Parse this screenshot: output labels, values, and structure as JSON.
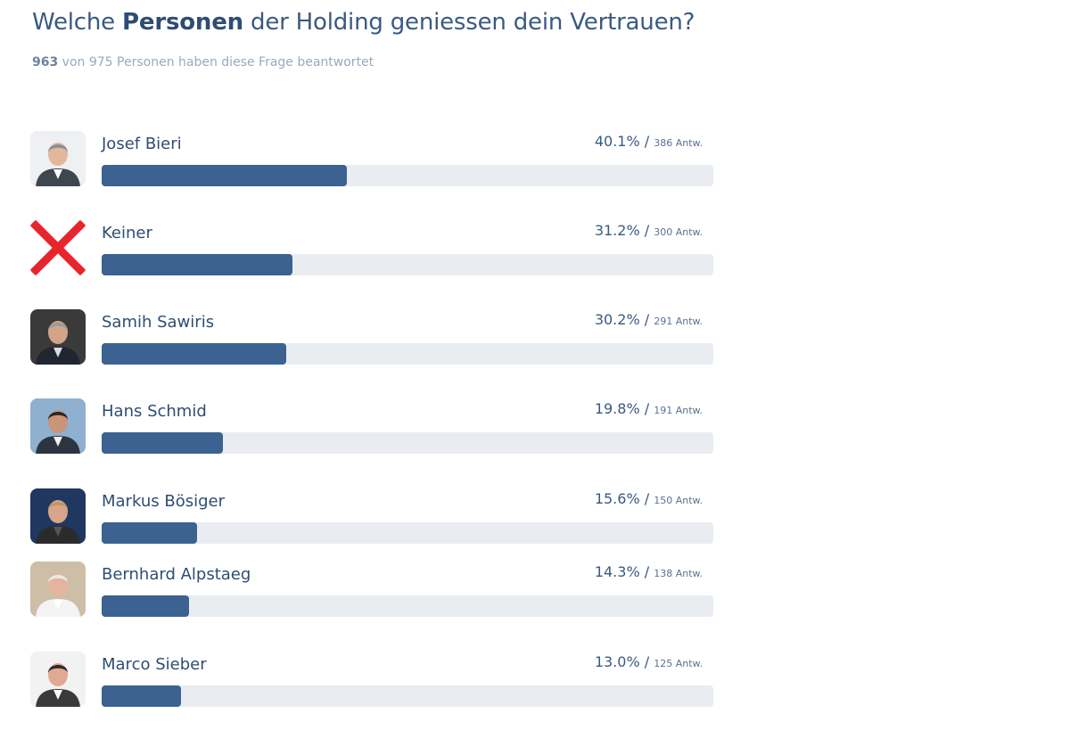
{
  "question": {
    "prefix": "Welche ",
    "highlight": "Personen",
    "suffix": " der Holding geniessen dein Vertrauen?"
  },
  "subtitle": {
    "answered": "963",
    "text": " von 975 Personen haben diese Frage beantwortet"
  },
  "colors": {
    "bar_fill": "#3b6290",
    "bar_track": "#e9edf2",
    "cross": "#e8242c"
  },
  "chart_data": {
    "type": "bar",
    "title": "Welche Personen der Holding geniessen dein Vertrauen?",
    "orientation": "horizontal",
    "xlim": [
      0,
      100
    ],
    "unit": "%",
    "categories": [
      "Josef Bieri",
      "Keiner",
      "Samih Sawiris",
      "Hans Schmid",
      "Markus Bösiger",
      "Bernhard Alpstaeg",
      "Marco Sieber"
    ],
    "values": [
      40.1,
      31.2,
      30.2,
      19.8,
      15.6,
      14.3,
      13.0
    ],
    "counts": [
      386,
      300,
      291,
      191,
      150,
      138,
      125
    ],
    "rows": [
      {
        "name": "Josef Bieri",
        "percent": 40.1,
        "percent_label": "40.1%",
        "count_label": "386 Antw.",
        "avatar": "portrait-light"
      },
      {
        "name": "Keiner",
        "percent": 31.2,
        "percent_label": "31.2%",
        "count_label": "300 Antw.",
        "avatar": "cross-icon"
      },
      {
        "name": "Samih Sawiris",
        "percent": 30.2,
        "percent_label": "30.2%",
        "count_label": "291 Antw.",
        "avatar": "portrait-dark"
      },
      {
        "name": "Hans Schmid",
        "percent": 19.8,
        "percent_label": "19.8%",
        "count_label": "191 Antw.",
        "avatar": "portrait-outdoor"
      },
      {
        "name": "Markus Bösiger",
        "percent": 15.6,
        "percent_label": "15.6%",
        "count_label": "150 Antw.",
        "avatar": "portrait-navy"
      },
      {
        "name": "Bernhard Alpstaeg",
        "percent": 14.3,
        "percent_label": "14.3%",
        "count_label": "138 Antw.",
        "avatar": "portrait-office"
      },
      {
        "name": "Marco Sieber",
        "percent": 13.0,
        "percent_label": "13.0%",
        "count_label": "125 Antw.",
        "avatar": "portrait-glasses"
      }
    ]
  }
}
